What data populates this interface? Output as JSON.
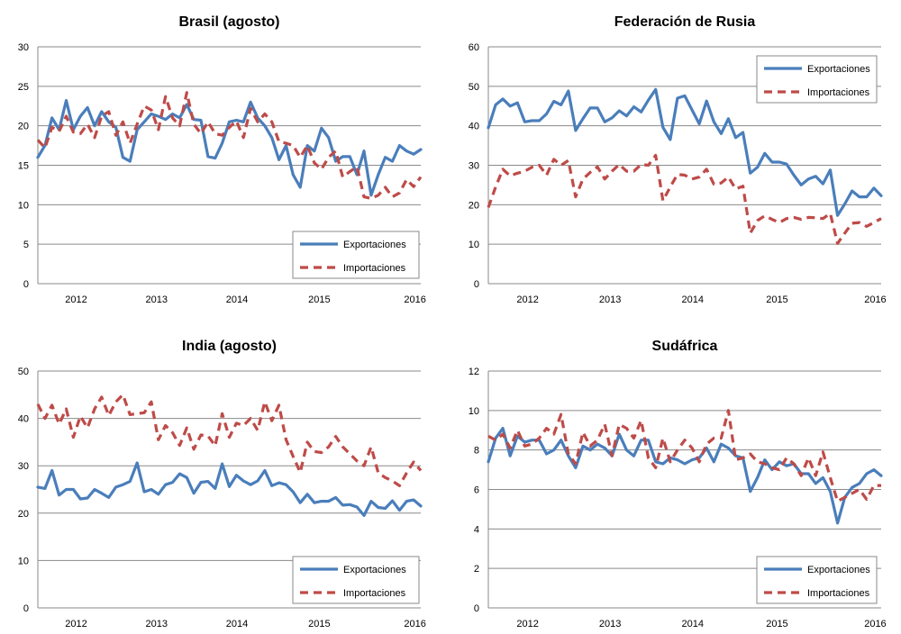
{
  "colors": {
    "exportaciones": "#4a7ebb",
    "importaciones": "#be4b48",
    "grid": "#8a8a8a"
  },
  "chart_data": [
    {
      "type": "line",
      "title": "Brasil (agosto)",
      "ylim": [
        0,
        30
      ],
      "yticks": [
        0,
        5,
        10,
        15,
        20,
        25,
        30
      ],
      "x_tick_labels": [
        "2012",
        "2013",
        "2014",
        "2015",
        "2016"
      ],
      "grid": true,
      "legend": "bottom-right",
      "series": [
        {
          "name": "Exportaciones",
          "values": [
            16,
            17.5,
            21,
            19.5,
            23.2,
            19.5,
            21.2,
            22.3,
            20,
            21.8,
            20.5,
            19.8,
            16,
            15.5,
            19.5,
            20.5,
            21.5,
            21.2,
            20.8,
            21.5,
            21,
            22.7,
            20.8,
            20.7,
            16.1,
            15.9,
            17.8,
            20.5,
            20.7,
            20.5,
            23,
            21,
            20,
            18.5,
            15.7,
            17.5,
            13.8,
            12.2,
            17.5,
            16.8,
            19.7,
            18.5,
            15.5,
            16.1,
            16.1,
            13.8,
            16.8,
            11.2,
            13.8,
            16,
            15.5,
            17.5,
            16.8,
            16.4,
            17
          ]
        },
        {
          "name": "Importaciones",
          "values": [
            18.2,
            17.2,
            19.8,
            19.3,
            21.2,
            19.2,
            19,
            20.2,
            18.5,
            21.2,
            21.8,
            18.8,
            20.5,
            17.8,
            20.2,
            22.5,
            22,
            19.5,
            23.7,
            21,
            20,
            24.2,
            20.2,
            19,
            20.5,
            19,
            18.8,
            19.8,
            20.6,
            18.5,
            22.2,
            20.5,
            21.5,
            20.5,
            18,
            17.8,
            17.5,
            16,
            17.5,
            15.3,
            14.5,
            16,
            16.8,
            13.5,
            14.2,
            14.8,
            11,
            10.8,
            11.2,
            12.2,
            11,
            11.5,
            13.2,
            12.3,
            13.5
          ]
        }
      ]
    },
    {
      "type": "line",
      "title": "Federación de Rusia",
      "ylim": [
        0,
        60
      ],
      "yticks": [
        0,
        10,
        20,
        30,
        40,
        50,
        60
      ],
      "x_tick_labels": [
        "2012",
        "2013",
        "2014",
        "2015",
        "2016"
      ],
      "grid": true,
      "legend": "top-right",
      "series": [
        {
          "name": "Exportaciones",
          "values": [
            39.5,
            45.3,
            46.8,
            45,
            45.8,
            41,
            41.3,
            41.3,
            43,
            46.2,
            45.3,
            48.8,
            38.8,
            41.8,
            44.5,
            44.5,
            41,
            42,
            43.8,
            42.5,
            44.8,
            43.5,
            46.5,
            49.2,
            39.6,
            36.5,
            47,
            47.6,
            44,
            40.5,
            46.3,
            41,
            38,
            41.8,
            37,
            38.3,
            28,
            29.5,
            33,
            30.8,
            30.8,
            30.3,
            27.5,
            25,
            26.5,
            27.2,
            25.3,
            28.8,
            17.3,
            20.2,
            23.5,
            22,
            22,
            24.2,
            22.3
          ]
        },
        {
          "name": "Importaciones",
          "values": [
            19.3,
            24.5,
            29,
            27.3,
            28,
            28.5,
            29.5,
            30,
            27.5,
            31.5,
            30,
            31.2,
            22,
            26.5,
            28.2,
            29.6,
            26.5,
            28.5,
            30.2,
            28.5,
            28.5,
            30.2,
            30,
            32.5,
            21,
            24.5,
            27.7,
            27.5,
            26.5,
            27,
            29,
            25.2,
            25.5,
            27,
            24,
            24.7,
            12.8,
            16,
            17.2,
            16.3,
            15.5,
            16.5,
            16.8,
            16.3,
            16.8,
            16.7,
            16.5,
            17.8,
            10.2,
            12.8,
            15.3,
            15.5,
            14.5,
            15.5,
            16.5
          ]
        }
      ]
    },
    {
      "type": "line",
      "title": "India (agosto)",
      "ylim": [
        0,
        50
      ],
      "yticks": [
        0,
        10,
        20,
        30,
        40,
        50
      ],
      "x_tick_labels": [
        "2012",
        "2013",
        "2014",
        "2015",
        "2016"
      ],
      "grid": true,
      "legend": "bottom-right",
      "series": [
        {
          "name": "Exportaciones",
          "values": [
            25.5,
            25.2,
            29,
            23.8,
            25,
            25,
            23,
            23.2,
            25,
            24.2,
            23.3,
            25.5,
            26,
            26.7,
            30.6,
            24.5,
            25,
            24,
            26,
            26.5,
            28.3,
            27.5,
            24.2,
            26.5,
            26.7,
            25.2,
            30.4,
            25.6,
            28,
            26.8,
            26,
            26.8,
            29,
            25.8,
            26.4,
            26,
            24.5,
            22.2,
            24,
            22.2,
            22.5,
            22.5,
            23.3,
            21.7,
            21.8,
            21.3,
            19.5,
            22.5,
            21.2,
            21,
            22.6,
            20.6,
            22.5,
            22.8,
            21.5
          ]
        },
        {
          "name": "Importaciones",
          "values": [
            43,
            40,
            42.8,
            38.8,
            42,
            36,
            40.5,
            38,
            42,
            44.5,
            40.6,
            43.5,
            45,
            40.8,
            41,
            41.2,
            43.5,
            35.5,
            38.5,
            37,
            34.3,
            38,
            33.5,
            36.5,
            36.3,
            34.2,
            41,
            36,
            39,
            38.5,
            40,
            37.5,
            43.5,
            39.5,
            42.8,
            35.5,
            32,
            28.6,
            35,
            33,
            32.8,
            34,
            36.2,
            34,
            32.5,
            31,
            30,
            34,
            28.5,
            27.5,
            26.8,
            25.8,
            28.5,
            30.8,
            29
          ]
        }
      ]
    },
    {
      "type": "line",
      "title": "Sudáfrica",
      "ylim": [
        0,
        12
      ],
      "yticks": [
        0,
        2,
        4,
        6,
        8,
        10,
        12
      ],
      "x_tick_labels": [
        "2012",
        "2013",
        "2014",
        "2015",
        "2016"
      ],
      "grid": true,
      "legend": "bottom-right",
      "series": [
        {
          "name": "Exportaciones",
          "values": [
            7.4,
            8.6,
            9.1,
            7.7,
            8.7,
            8.4,
            8.5,
            8.5,
            7.8,
            8,
            8.5,
            7.7,
            7.1,
            8.2,
            8,
            8.3,
            8.1,
            7.7,
            8.8,
            8,
            7.7,
            8.5,
            8.5,
            7.4,
            7.3,
            7.6,
            7.5,
            7.3,
            7.5,
            7.6,
            8.1,
            7.4,
            8.3,
            8.1,
            7.7,
            7.6,
            5.9,
            6.6,
            7.5,
            7,
            7.4,
            7.2,
            7.3,
            6.8,
            6.8,
            6.3,
            6.6,
            5.9,
            4.3,
            5.6,
            6.1,
            6.3,
            6.8,
            7,
            6.7
          ]
        },
        {
          "name": "Importaciones",
          "values": [
            8.7,
            8.5,
            8.8,
            8.1,
            9,
            8.2,
            8.3,
            8.6,
            9.1,
            8.8,
            9.8,
            7.8,
            7.3,
            8.9,
            8.2,
            8.5,
            9.3,
            7.7,
            9.3,
            9.1,
            8.6,
            9.5,
            7.6,
            7.1,
            8.6,
            7.4,
            8,
            8.5,
            8.1,
            7.4,
            8.3,
            8.6,
            8.6,
            10,
            7.5,
            7.6,
            7.8,
            7.4,
            7.3,
            7.1,
            7,
            7.6,
            7.3,
            6.7,
            7.6,
            6.7,
            7.9,
            6.6,
            5.4,
            5.6,
            5.8,
            6,
            5.5,
            6.2,
            6.2
          ]
        }
      ]
    }
  ]
}
